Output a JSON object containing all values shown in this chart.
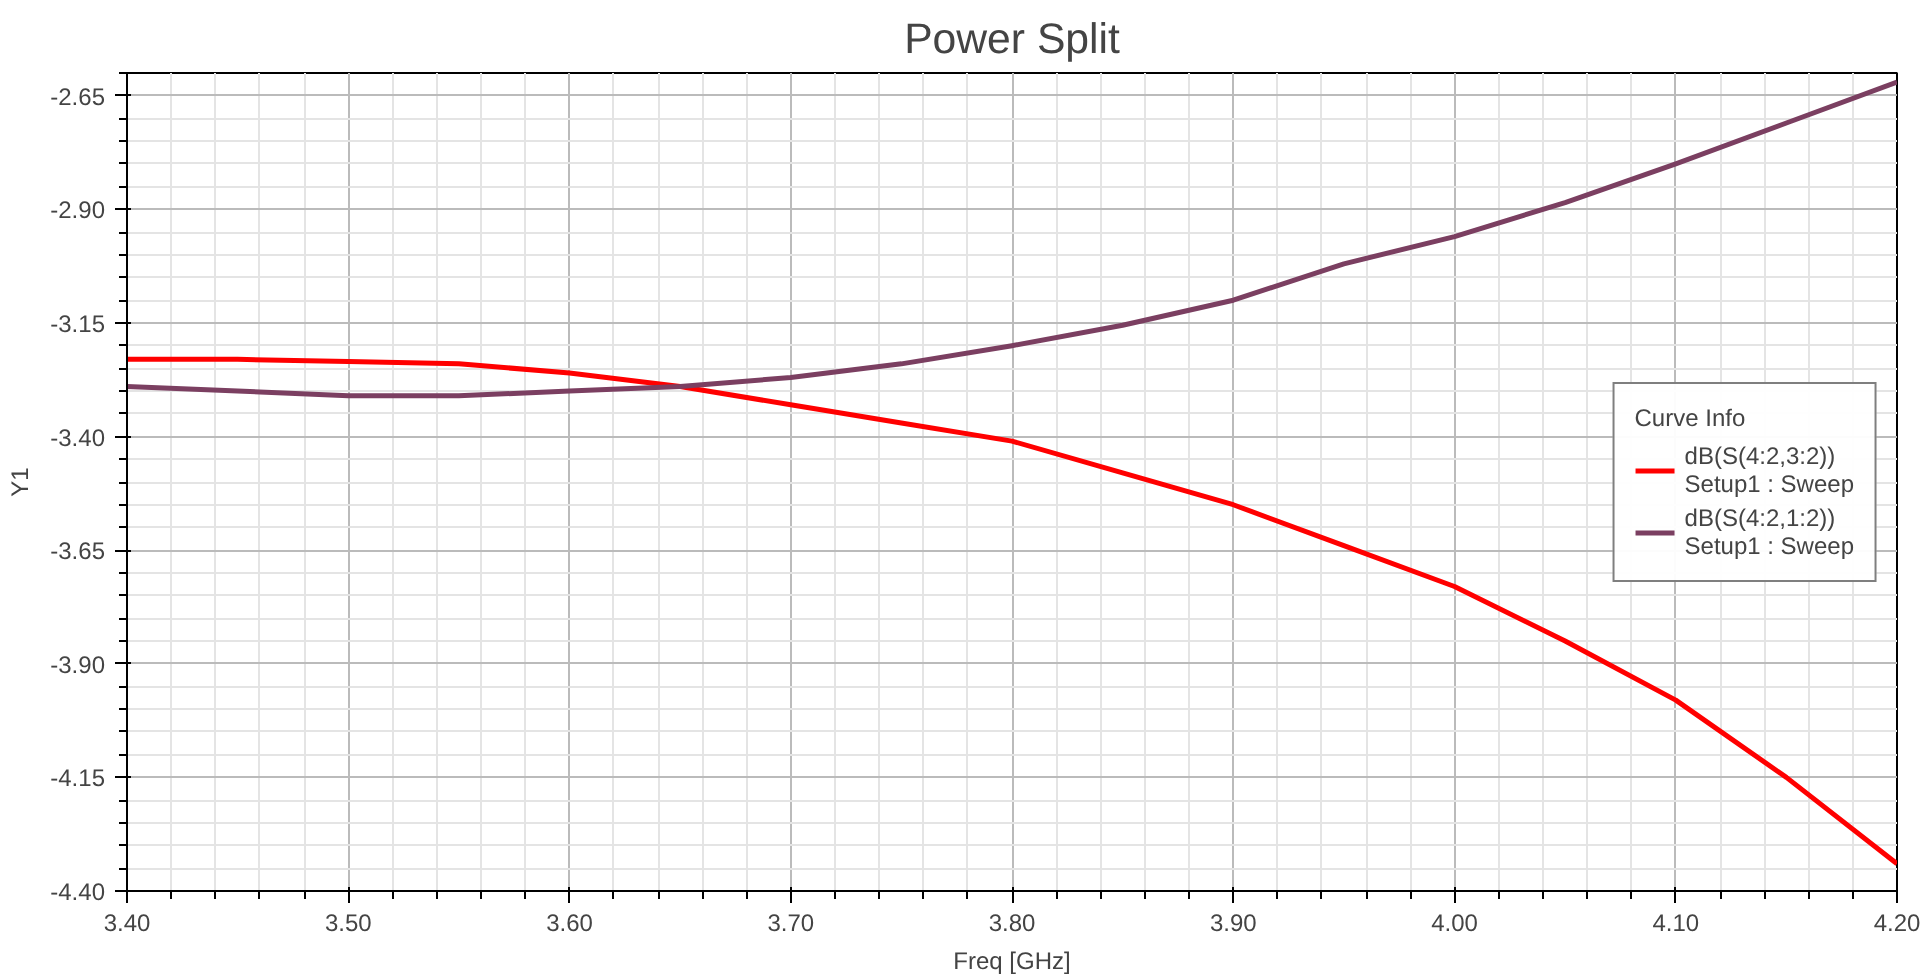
{
  "chart_data": {
    "type": "line",
    "title": "Power Split",
    "xlabel": "Freq [GHz]",
    "ylabel": "Y1",
    "legend_title": "Curve Info",
    "legend": "right",
    "grid": true,
    "line_style": "solid",
    "marker": "none",
    "xlim": [
      3.4,
      4.2
    ],
    "ylim": [
      -4.4,
      -2.6
    ],
    "xticks": [
      {
        "value": 3.4,
        "label": "3.40"
      },
      {
        "value": 3.5,
        "label": "3.50"
      },
      {
        "value": 3.6,
        "label": "3.60"
      },
      {
        "value": 3.7,
        "label": "3.70"
      },
      {
        "value": 3.8,
        "label": "3.80"
      },
      {
        "value": 3.9,
        "label": "3.90"
      },
      {
        "value": 4.0,
        "label": "4.00"
      },
      {
        "value": 4.1,
        "label": "4.10"
      },
      {
        "value": 4.2,
        "label": "4.20"
      }
    ],
    "yticks": [
      -2.65,
      {
        "value": -2.9,
        "label": "-2.90"
      },
      -3.15,
      {
        "value": -3.4,
        "label": "-3.40"
      },
      -3.65,
      {
        "value": -3.9,
        "label": "-3.90"
      },
      -4.15,
      {
        "value": -4.4,
        "label": "-4.40"
      }
    ],
    "x": [
      3.4,
      3.45,
      3.5,
      3.55,
      3.6,
      3.65,
      3.7,
      3.75,
      3.8,
      3.85,
      3.9,
      3.95,
      4.0,
      4.05,
      4.1,
      4.15,
      4.2
    ],
    "series": [
      {
        "name": "dB(S(4:2,3:2))\nSetup1 : Sweep",
        "color": "#ff0000",
        "values": [
          -3.23,
          -3.23,
          -3.235,
          -3.24,
          -3.26,
          -3.29,
          -3.33,
          -3.37,
          -3.41,
          -3.48,
          -3.55,
          -3.64,
          -3.73,
          -3.85,
          -3.98,
          -4.15,
          -4.34
        ]
      },
      {
        "name": "dB(S(4:2,1:2))\nSetup1 : Sweep",
        "color": "#7b3f61",
        "values": [
          -3.29,
          -3.3,
          -3.31,
          -3.31,
          -3.3,
          -3.29,
          -3.27,
          -3.24,
          -3.2,
          -3.155,
          -3.1,
          -3.02,
          -2.96,
          -2.885,
          -2.8,
          -2.71,
          -2.62
        ]
      }
    ]
  }
}
